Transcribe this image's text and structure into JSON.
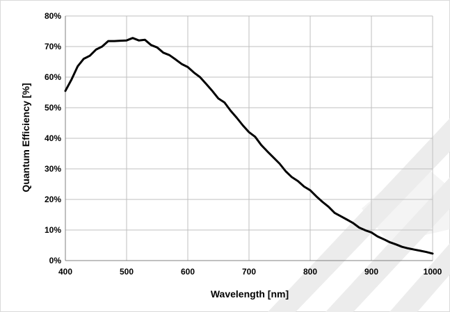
{
  "chart_data": {
    "type": "line",
    "title": "",
    "xlabel": "Wavelength [nm]",
    "ylabel": "Quantum Efficiency [%]",
    "xlim": [
      400,
      1000
    ],
    "ylim": [
      0,
      80
    ],
    "x_ticks": [
      400,
      500,
      600,
      700,
      800,
      900,
      1000
    ],
    "y_ticks": [
      0,
      10,
      20,
      30,
      40,
      50,
      60,
      70,
      80
    ],
    "y_tick_labels": [
      "0%",
      "10%",
      "20%",
      "30%",
      "40%",
      "50%",
      "60%",
      "70%",
      "80%"
    ],
    "grid": true,
    "legend": "none",
    "series": [
      {
        "color": "#000000",
        "points": [
          [
            400,
            55.5
          ],
          [
            410,
            59.2
          ],
          [
            420,
            63.5
          ],
          [
            430,
            66.0
          ],
          [
            440,
            67.0
          ],
          [
            450,
            69.0
          ],
          [
            460,
            70.0
          ],
          [
            470,
            71.8
          ],
          [
            480,
            71.8
          ],
          [
            490,
            71.9
          ],
          [
            500,
            72.0
          ],
          [
            510,
            72.8
          ],
          [
            520,
            72.0
          ],
          [
            530,
            72.2
          ],
          [
            540,
            70.5
          ],
          [
            550,
            69.7
          ],
          [
            560,
            68.0
          ],
          [
            570,
            67.2
          ],
          [
            580,
            65.8
          ],
          [
            590,
            64.3
          ],
          [
            600,
            63.3
          ],
          [
            610,
            61.5
          ],
          [
            620,
            60.0
          ],
          [
            630,
            57.8
          ],
          [
            640,
            55.5
          ],
          [
            650,
            53.0
          ],
          [
            660,
            51.7
          ],
          [
            670,
            49.0
          ],
          [
            680,
            46.7
          ],
          [
            690,
            44.2
          ],
          [
            700,
            42.0
          ],
          [
            710,
            40.5
          ],
          [
            720,
            37.8
          ],
          [
            730,
            35.7
          ],
          [
            740,
            33.7
          ],
          [
            750,
            31.7
          ],
          [
            760,
            29.2
          ],
          [
            770,
            27.3
          ],
          [
            780,
            26.0
          ],
          [
            790,
            24.2
          ],
          [
            800,
            23.0
          ],
          [
            810,
            21.0
          ],
          [
            820,
            19.2
          ],
          [
            830,
            17.6
          ],
          [
            840,
            15.6
          ],
          [
            850,
            14.5
          ],
          [
            860,
            13.4
          ],
          [
            870,
            12.3
          ],
          [
            880,
            10.8
          ],
          [
            890,
            9.9
          ],
          [
            900,
            9.2
          ],
          [
            910,
            7.9
          ],
          [
            920,
            7.0
          ],
          [
            930,
            6.0
          ],
          [
            940,
            5.3
          ],
          [
            950,
            4.5
          ],
          [
            960,
            4.0
          ],
          [
            970,
            3.6
          ],
          [
            980,
            3.2
          ],
          [
            990,
            2.8
          ],
          [
            1000,
            2.3
          ]
        ]
      }
    ]
  },
  "watermark_color": "#ececec"
}
